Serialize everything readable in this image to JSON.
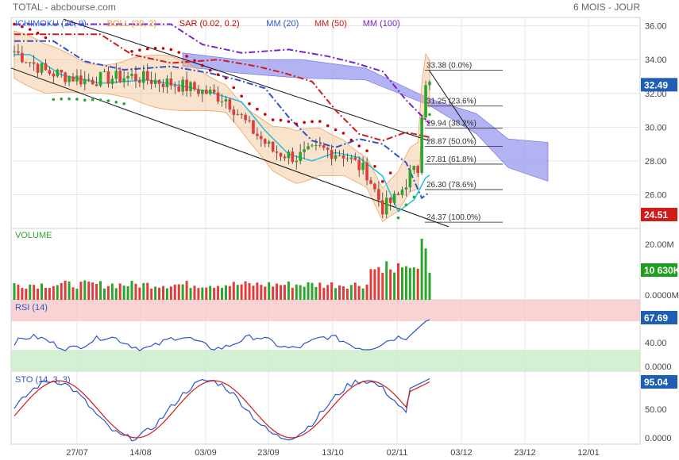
{
  "header": {
    "title": "TOTAL - abcbourse.com",
    "period": "6 MOIS - JOUR"
  },
  "legend": [
    {
      "label": "ICHIMOKU (26, 9)",
      "color": "#2d6fd6"
    },
    {
      "label": "BOLL (20, 2)",
      "color": "#f0a030"
    },
    {
      "label": "SAR (0.02, 0.2)",
      "color": "#cc0000"
    },
    {
      "label": "MM (20)",
      "color": "#2a55cc"
    },
    {
      "label": "MM (50)",
      "color": "#d11a1a"
    },
    {
      "label": "MM (100)",
      "color": "#7a22cc"
    }
  ],
  "colors": {
    "up": "#2ca52c",
    "down": "#e23b3b",
    "cloud": "#9a9af0",
    "boll": "#f5c090",
    "volume_badge": "#1f9e1f",
    "rsi_badge": "#1e5fb3",
    "price_badge": "#1e5fb3",
    "low_badge": "#d11a1a",
    "sto_badge": "#1e5fb3",
    "grid": "#e4e4e4"
  },
  "chart_data": [
    {
      "type": "candlestick",
      "panel": "price",
      "ylim": [
        24,
        36.5
      ],
      "yticks": [
        26,
        28,
        30,
        32,
        34,
        36
      ],
      "ytick_labels": [
        "26.00",
        "28.00",
        "30.00",
        "32.00",
        "34.00",
        "36.00"
      ],
      "last_price": "32.49",
      "low_marker": "24.51",
      "fibonacci": [
        {
          "value": 33.38,
          "label": "33.38",
          "pct": "(0.0%)"
        },
        {
          "value": 31.25,
          "label": "31.25",
          "pct": "(23.6%)"
        },
        {
          "value": 29.94,
          "label": "29.94",
          "pct": "(38.2%)"
        },
        {
          "value": 28.87,
          "label": "28.87",
          "pct": "(50.0%)"
        },
        {
          "value": 27.81,
          "label": "27.81",
          "pct": "(61.8%)"
        },
        {
          "value": 26.3,
          "label": "26.30",
          "pct": "(78.6%)"
        },
        {
          "value": 24.37,
          "label": "24.37",
          "pct": "(100.0%)"
        }
      ]
    },
    {
      "type": "bar",
      "panel": "volume",
      "title": "VOLUME",
      "yticks": [
        "20.00M",
        "0.0000M"
      ],
      "last_value": "10 630K"
    },
    {
      "type": "line",
      "panel": "rsi",
      "title": "RSI (14)",
      "ylim": [
        0,
        100
      ],
      "yticks": [
        "40.00",
        "0.0000"
      ],
      "last_value": "67.69"
    },
    {
      "type": "line",
      "panel": "sto",
      "title": "STO (14, 3, 3)",
      "ylim": [
        0,
        100
      ],
      "yticks": [
        "50.00",
        "0.0000"
      ],
      "last_value": "95.04"
    }
  ],
  "x_axis": {
    "labels": [
      "27/07",
      "14/08",
      "03/09",
      "23/09",
      "13/10",
      "02/11",
      "03/12",
      "23/12",
      "12/01"
    ]
  }
}
